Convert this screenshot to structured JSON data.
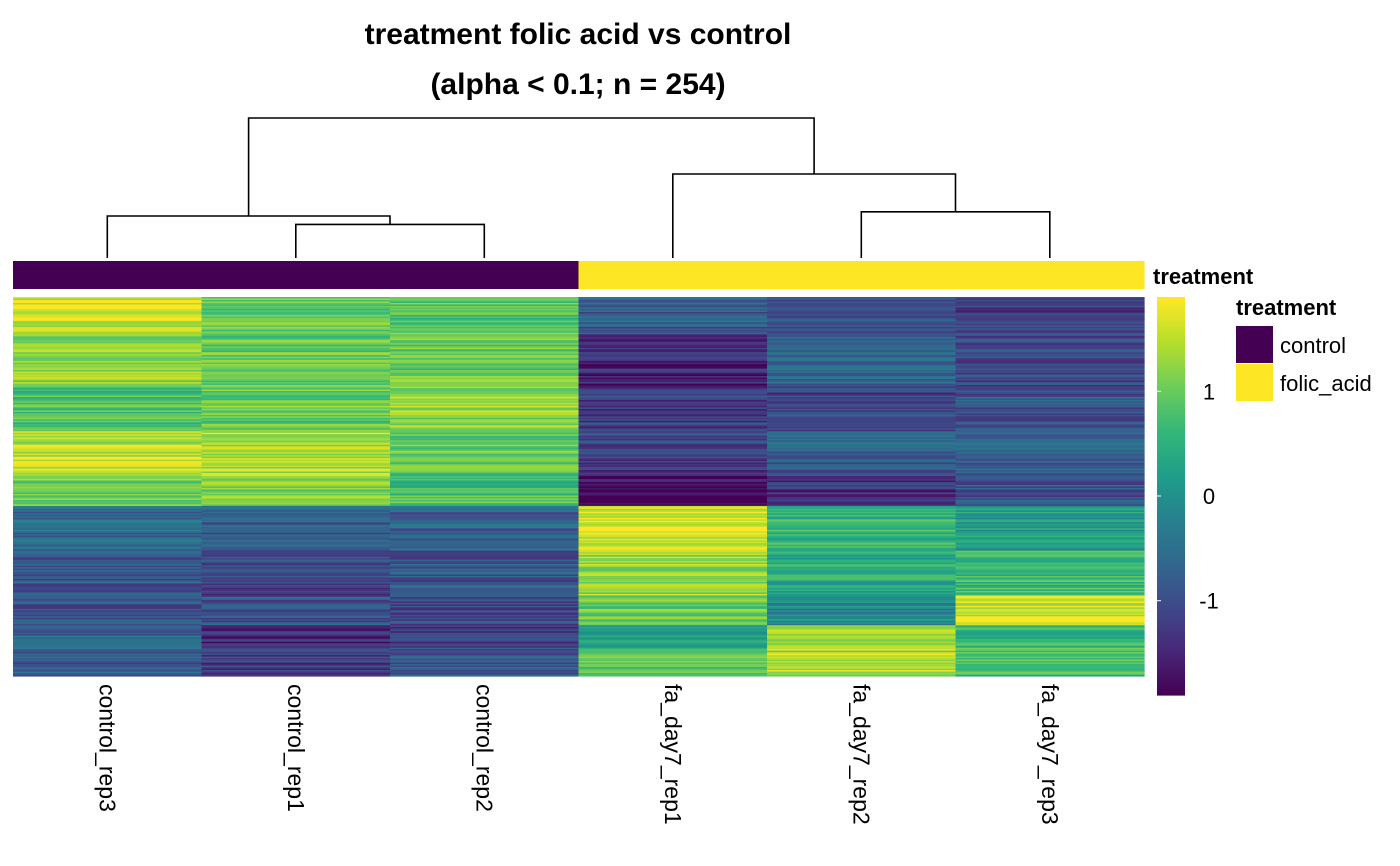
{
  "chart_data": {
    "type": "heatmap",
    "title_line1": "treatment folic acid vs control",
    "title_line2": "(alpha < 0.1; n = 254)",
    "columns": [
      "control_rep3",
      "control_rep1",
      "control_rep2",
      "fa_day7_rep1",
      "fa_day7_rep2",
      "fa_day7_rep3"
    ],
    "n_rows": 254,
    "annotation": {
      "name": "treatment",
      "values": [
        "control",
        "control",
        "control",
        "folic_acid",
        "folic_acid",
        "folic_acid"
      ],
      "levels": [
        {
          "label": "control",
          "color": "#440154"
        },
        {
          "label": "folic_acid",
          "color": "#FDE725"
        }
      ]
    },
    "colorbar": {
      "range": [
        -1.9,
        1.9
      ],
      "ticks": [
        1,
        0,
        -1
      ],
      "tick_labels": [
        "1",
        "0",
        "-1"
      ],
      "palette": "viridis"
    },
    "dendrogram": {
      "merges": [
        {
          "left": "control_rep1",
          "right": "control_rep2",
          "height": 0.24
        },
        {
          "left": "control_rep3",
          "right": "control_rep1+control_rep2",
          "height": 0.3
        },
        {
          "left": "fa_day7_rep2",
          "right": "fa_day7_rep3",
          "height": 0.33
        },
        {
          "left": "fa_day7_rep1",
          "right": "fa_day7_rep2+fa_day7_rep3",
          "height": 0.6
        },
        {
          "left": "control",
          "right": "folic_acid",
          "height": 1.0
        }
      ]
    },
    "row_blocks": [
      {
        "rows": 25,
        "values": [
          1.6,
          1.0,
          0.9,
          -0.8,
          -1.0,
          -1.2
        ]
      },
      {
        "rows": 35,
        "values": [
          1.2,
          1.0,
          1.0,
          -1.5,
          -0.6,
          -1.1
        ]
      },
      {
        "rows": 30,
        "values": [
          0.8,
          1.0,
          1.3,
          -1.2,
          -1.1,
          -0.9
        ]
      },
      {
        "rows": 30,
        "values": [
          1.5,
          1.5,
          0.9,
          -1.2,
          -0.8,
          -0.8
        ]
      },
      {
        "rows": 20,
        "values": [
          1.1,
          1.2,
          0.8,
          -1.8,
          -1.3,
          -0.9
        ]
      },
      {
        "rows": 30,
        "values": [
          -0.6,
          -0.8,
          -0.7,
          1.7,
          0.6,
          0.2
        ]
      },
      {
        "rows": 30,
        "values": [
          -0.9,
          -1.1,
          -0.9,
          1.3,
          0.4,
          0.7
        ]
      },
      {
        "rows": 20,
        "values": [
          -0.9,
          -0.9,
          -1.1,
          1.0,
          -0.1,
          1.7
        ]
      },
      {
        "rows": 15,
        "values": [
          -0.7,
          -1.4,
          -1.2,
          0.3,
          1.2,
          0.6
        ]
      },
      {
        "rows": 19,
        "values": [
          -0.8,
          -1.2,
          -0.9,
          1.0,
          1.4,
          0.8
        ]
      }
    ],
    "grid": false,
    "legend_position": "right"
  }
}
